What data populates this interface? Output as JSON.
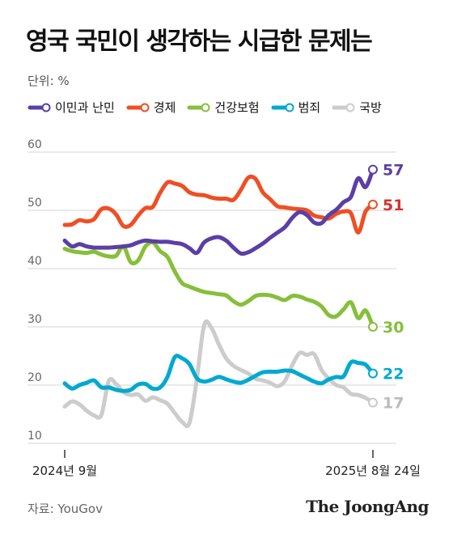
{
  "header": {
    "title": "영국 국민이 생각하는 시급한 문제는",
    "unit": "단위: %"
  },
  "footer": {
    "source": "자료: YouGov",
    "logo": "The JoongAng"
  },
  "chart_data": {
    "type": "line",
    "x_start_label": "2024년 9월",
    "x_end_label": "2025년 8월 24일",
    "ylim": [
      10,
      60
    ],
    "yticks": [
      10,
      20,
      30,
      40,
      50,
      60
    ],
    "grid": true,
    "legend_position": "top",
    "series": [
      {
        "name": "이민과 난민",
        "color": "#5b3fa5",
        "end_label": "57",
        "label_color": "#5b3fa5",
        "values": [
          44.8,
          43.8,
          44.2,
          43.8,
          43.6,
          43.6,
          43.6,
          43.7,
          43.8,
          44.0,
          44.5,
          44.8,
          44.7,
          44.6,
          44.6,
          44.4,
          44.2,
          43.5,
          42.7,
          44.5,
          45.2,
          45.4,
          44.8,
          43.6,
          42.6,
          42.8,
          43.5,
          44.3,
          45.3,
          46.2,
          47.1,
          48.7,
          49.7,
          49.2,
          47.9,
          47.8,
          49.2,
          50.1,
          51.4,
          52.3,
          55.5,
          54.0,
          57.0
        ]
      },
      {
        "name": "경제",
        "color": "#f04e23",
        "end_label": "51",
        "label_color": "#d7322e",
        "values": [
          47.5,
          47.6,
          48.3,
          48.1,
          48.5,
          50.2,
          50.3,
          49.3,
          47.3,
          47.5,
          49.1,
          50.4,
          50.6,
          53.0,
          54.8,
          54.6,
          54.2,
          53.1,
          52.7,
          52.6,
          52.2,
          52.0,
          52.0,
          51.8,
          53.5,
          55.6,
          55.4,
          53.1,
          51.9,
          50.7,
          50.5,
          50.3,
          50.2,
          50.0,
          49.1,
          48.8,
          48.6,
          49.4,
          49.8,
          49.5,
          46.2,
          49.8,
          51.0
        ]
      },
      {
        "name": "건강보험",
        "color": "#86bf3a",
        "end_label": "30",
        "label_color": "#86bf3a",
        "values": [
          43.4,
          43.0,
          42.8,
          42.7,
          42.9,
          42.4,
          42.1,
          42.2,
          43.8,
          41.1,
          41.4,
          43.8,
          44.5,
          43.0,
          42.0,
          39.5,
          37.5,
          36.9,
          36.4,
          36.0,
          35.8,
          35.6,
          35.4,
          34.4,
          33.8,
          34.4,
          35.3,
          35.5,
          35.4,
          35.0,
          34.6,
          35.3,
          35.2,
          34.7,
          34.3,
          33.5,
          32.0,
          31.8,
          33.0,
          34.2,
          31.5,
          32.8,
          30.0
        ]
      },
      {
        "name": "범죄",
        "color": "#00a9d1",
        "end_label": "22",
        "label_color": "#00a9d1",
        "values": [
          20.3,
          19.4,
          20.0,
          20.4,
          20.8,
          19.6,
          19.6,
          19.2,
          19.0,
          19.2,
          20.1,
          20.2,
          19.4,
          19.6,
          21.4,
          24.8,
          24.6,
          23.6,
          21.2,
          20.6,
          20.9,
          21.4,
          21.0,
          20.6,
          20.4,
          20.9,
          21.6,
          22.2,
          22.3,
          22.3,
          22.5,
          22.4,
          21.8,
          21.2,
          20.6,
          20.3,
          21.0,
          21.4,
          21.5,
          23.9,
          23.8,
          23.5,
          22.0
        ]
      },
      {
        "name": "국방",
        "color": "#cccccc",
        "end_label": "17",
        "label_color": "#bbbbbb",
        "values": [
          16.3,
          17.2,
          16.7,
          15.6,
          14.8,
          14.9,
          20.7,
          20.2,
          18.8,
          18.3,
          18.4,
          17.3,
          17.9,
          17.4,
          16.8,
          15.2,
          13.7,
          13.5,
          21.0,
          30.3,
          29.8,
          27.0,
          24.6,
          23.3,
          22.6,
          22.0,
          21.1,
          20.8,
          20.4,
          19.8,
          20.7,
          23.4,
          25.5,
          25.2,
          25.3,
          22.6,
          21.1,
          20.0,
          19.6,
          18.5,
          18.3,
          17.8,
          17.0
        ]
      }
    ]
  }
}
